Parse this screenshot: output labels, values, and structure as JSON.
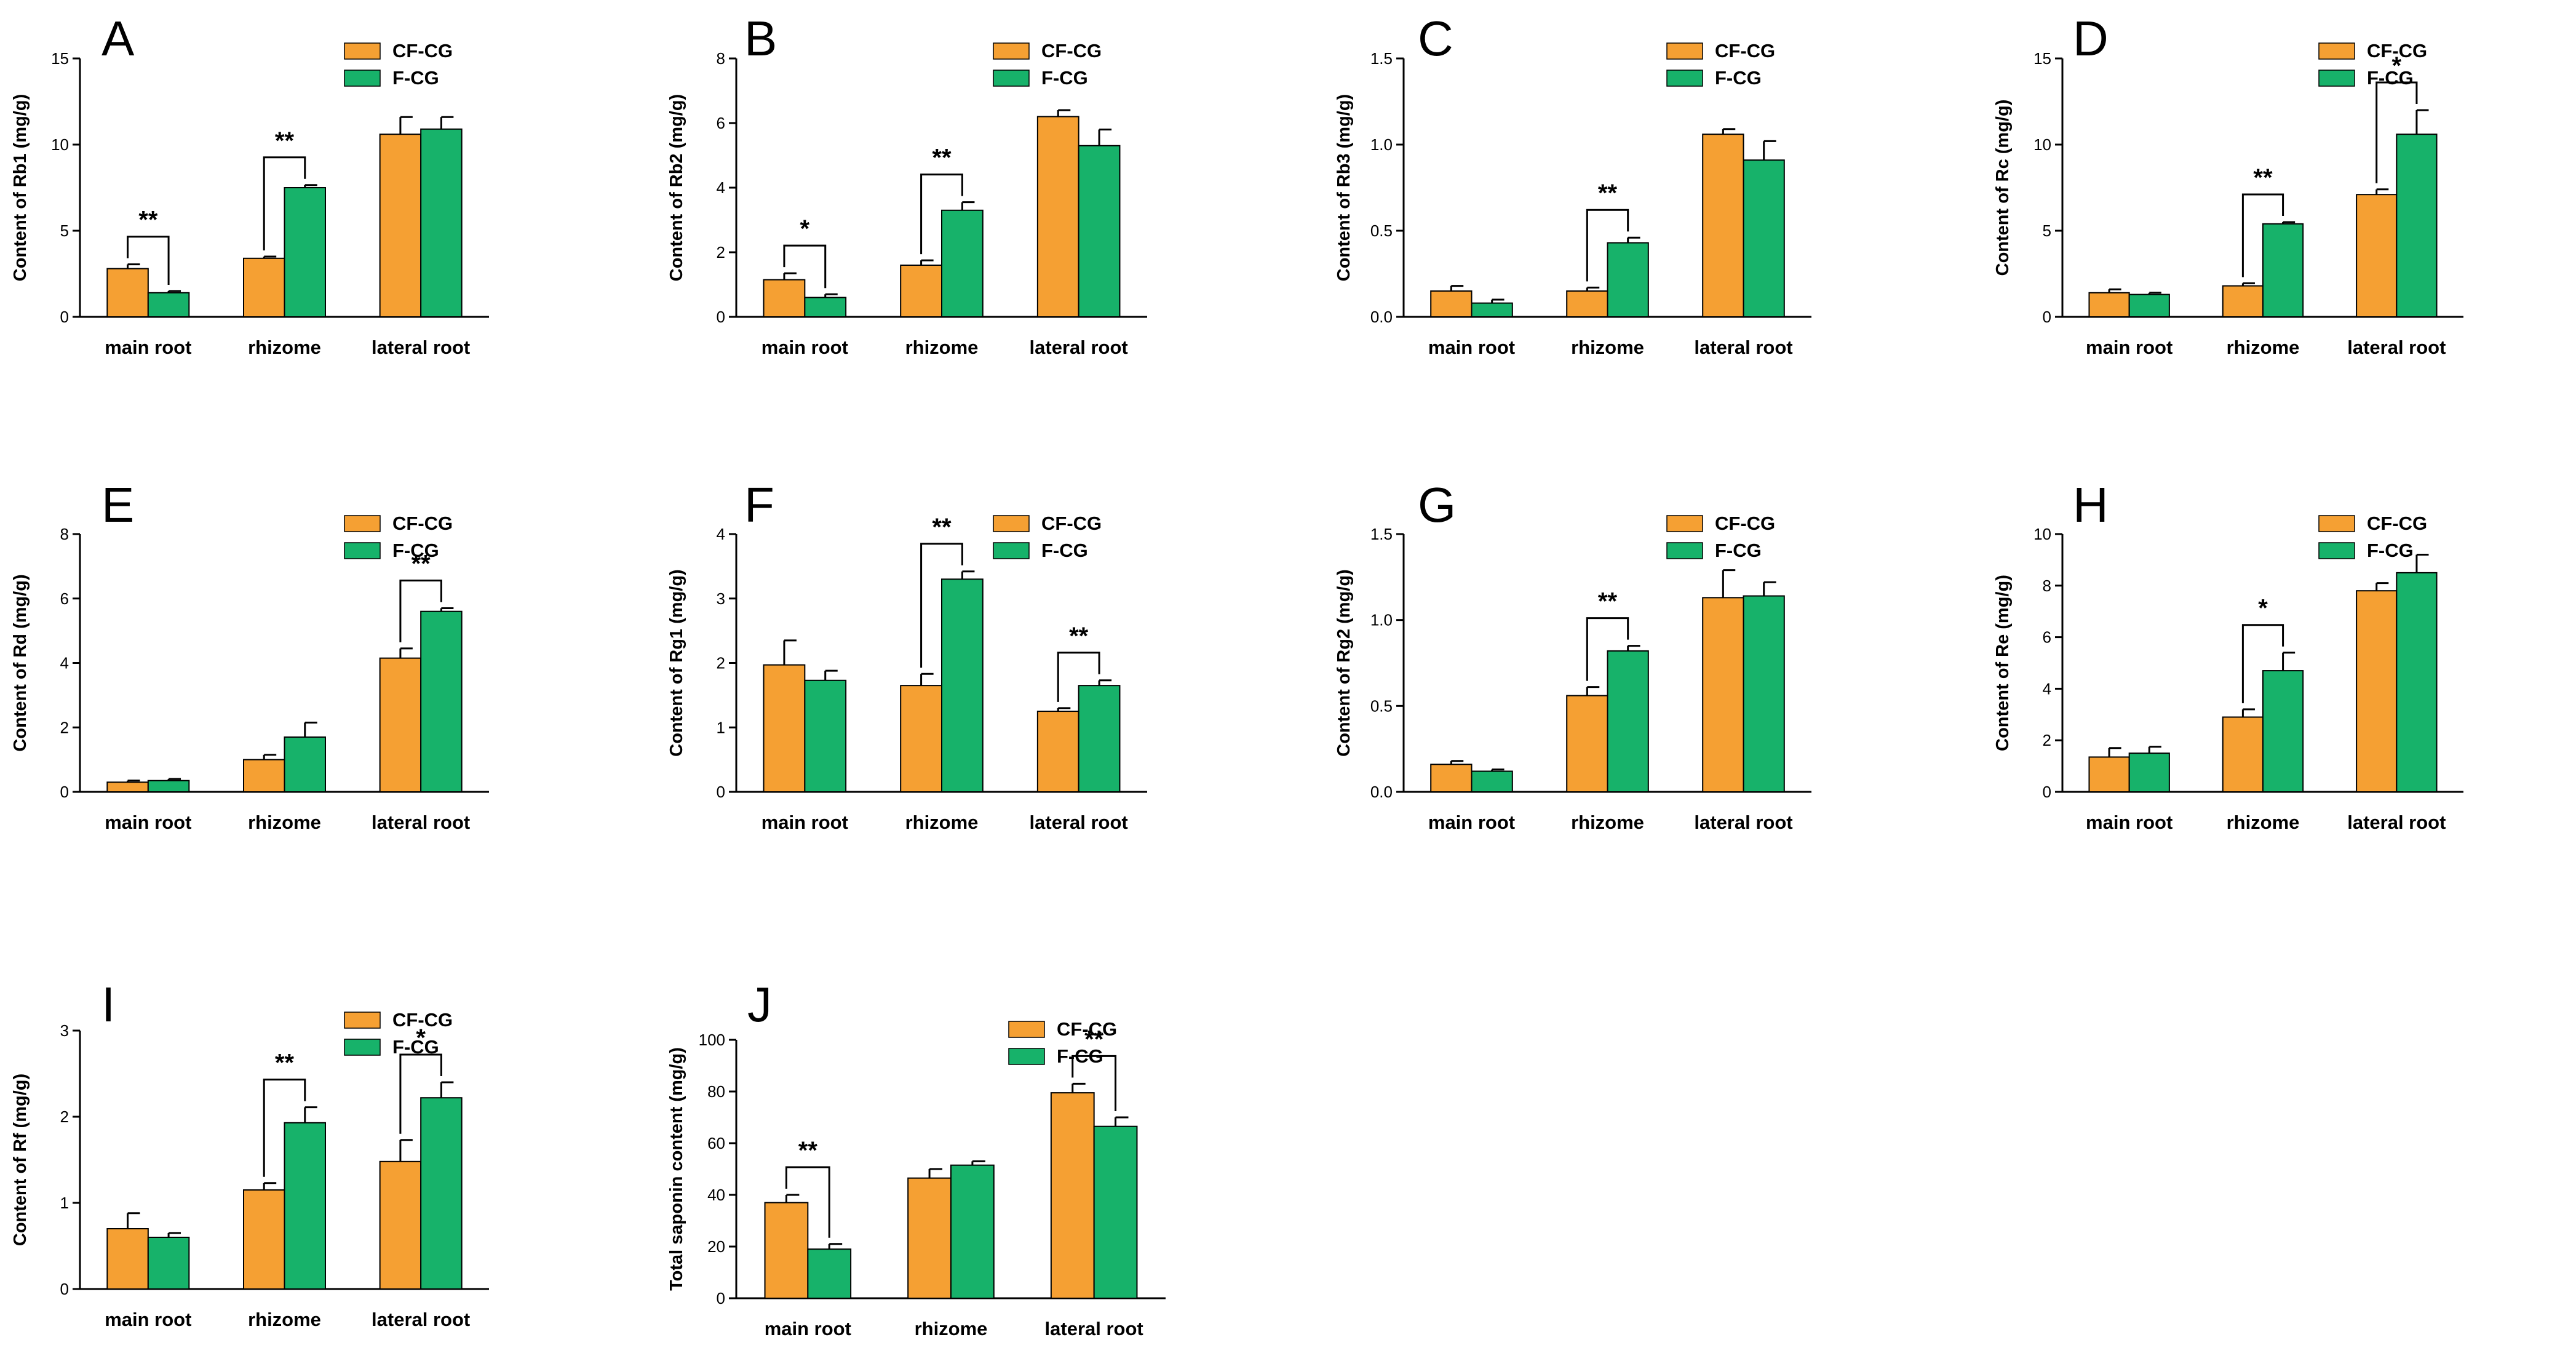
{
  "figure": {
    "colors": {
      "CF-CG": "#F5A033",
      "F-CG": "#17B26A",
      "axis": "#000000"
    }
  },
  "chart_data": [
    {
      "letter": "A",
      "type": "bar",
      "ylabel": "Content of  Rb1 (mg/g)",
      "ylim": [
        0,
        15
      ],
      "yticks": [
        0,
        5,
        10,
        15
      ],
      "categories": [
        "main root",
        "rhizome",
        "lateral root"
      ],
      "series": [
        {
          "name": "CF-CG",
          "values": [
            2.8,
            3.4,
            10.6
          ],
          "errors": [
            0.25,
            0.1,
            1.0
          ]
        },
        {
          "name": "F-CG",
          "values": [
            1.4,
            7.5,
            10.9
          ],
          "errors": [
            0.1,
            0.15,
            0.7
          ]
        }
      ],
      "significance": [
        {
          "category": 0,
          "label": "**"
        },
        {
          "category": 1,
          "label": "**"
        }
      ]
    },
    {
      "letter": "B",
      "type": "bar",
      "ylabel": "Content of Rb2 (mg/g)",
      "ylim": [
        0,
        8
      ],
      "yticks": [
        0,
        2,
        4,
        6,
        8
      ],
      "categories": [
        "main root",
        "rhizome",
        "lateral root"
      ],
      "series": [
        {
          "name": "CF-CG",
          "values": [
            1.15,
            1.6,
            6.2
          ],
          "errors": [
            0.2,
            0.15,
            0.2
          ]
        },
        {
          "name": "F-CG",
          "values": [
            0.6,
            3.3,
            5.3
          ],
          "errors": [
            0.1,
            0.25,
            0.5
          ]
        }
      ],
      "significance": [
        {
          "category": 0,
          "label": "*"
        },
        {
          "category": 1,
          "label": "**"
        }
      ]
    },
    {
      "letter": "C",
      "type": "bar",
      "ylabel": "Content of Rb3 (mg/g)",
      "ylim": [
        0,
        1.5
      ],
      "yticks": [
        0.0,
        0.5,
        1.0,
        1.5
      ],
      "categories": [
        "main root",
        "rhizome",
        "lateral root"
      ],
      "series": [
        {
          "name": "CF-CG",
          "values": [
            0.15,
            0.15,
            1.06
          ],
          "errors": [
            0.03,
            0.02,
            0.03
          ]
        },
        {
          "name": "F-CG",
          "values": [
            0.08,
            0.43,
            0.91
          ],
          "errors": [
            0.02,
            0.03,
            0.11
          ]
        }
      ],
      "significance": [
        {
          "category": 1,
          "label": "**"
        }
      ]
    },
    {
      "letter": "D",
      "type": "bar",
      "ylabel": "Content of Rc (mg/g)",
      "ylim": [
        0,
        15
      ],
      "yticks": [
        0,
        5,
        10,
        15
      ],
      "categories": [
        "main root",
        "rhizome",
        "lateral root"
      ],
      "series": [
        {
          "name": "CF-CG",
          "values": [
            1.4,
            1.8,
            7.1
          ],
          "errors": [
            0.2,
            0.15,
            0.3
          ]
        },
        {
          "name": "F-CG",
          "values": [
            1.3,
            5.4,
            10.6
          ],
          "errors": [
            0.1,
            0.1,
            1.4
          ]
        }
      ],
      "significance": [
        {
          "category": 1,
          "label": "**"
        },
        {
          "category": 2,
          "label": "*"
        }
      ]
    },
    {
      "letter": "E",
      "type": "bar",
      "ylabel": "Content of Rd (mg/g)",
      "ylim": [
        0,
        8
      ],
      "yticks": [
        0,
        2,
        4,
        6,
        8
      ],
      "categories": [
        "main root",
        "rhizome",
        "lateral root"
      ],
      "series": [
        {
          "name": "CF-CG",
          "values": [
            0.3,
            1.0,
            4.15
          ],
          "errors": [
            0.05,
            0.15,
            0.3
          ]
        },
        {
          "name": "F-CG",
          "values": [
            0.35,
            1.7,
            5.6
          ],
          "errors": [
            0.05,
            0.45,
            0.1
          ]
        }
      ],
      "significance": [
        {
          "category": 2,
          "label": "**"
        }
      ]
    },
    {
      "letter": "F",
      "type": "bar",
      "ylabel": "Content of Rg1 (mg/g)",
      "ylim": [
        0,
        4
      ],
      "yticks": [
        0,
        1,
        2,
        3,
        4
      ],
      "categories": [
        "main root",
        "rhizome",
        "lateral root"
      ],
      "series": [
        {
          "name": "CF-CG",
          "values": [
            1.97,
            1.65,
            1.25
          ],
          "errors": [
            0.38,
            0.18,
            0.05
          ]
        },
        {
          "name": "F-CG",
          "values": [
            1.73,
            3.3,
            1.65
          ],
          "errors": [
            0.15,
            0.12,
            0.08
          ]
        }
      ],
      "significance": [
        {
          "category": 1,
          "label": "**"
        },
        {
          "category": 2,
          "label": "**"
        }
      ]
    },
    {
      "letter": "G",
      "type": "bar",
      "ylabel": "Content of Rg2 (mg/g)",
      "ylim": [
        0,
        1.5
      ],
      "yticks": [
        0.0,
        0.5,
        1.0,
        1.5
      ],
      "categories": [
        "main root",
        "rhizome",
        "lateral root"
      ],
      "series": [
        {
          "name": "CF-CG",
          "values": [
            0.16,
            0.56,
            1.13
          ],
          "errors": [
            0.02,
            0.05,
            0.16
          ]
        },
        {
          "name": "F-CG",
          "values": [
            0.12,
            0.82,
            1.14
          ],
          "errors": [
            0.01,
            0.03,
            0.08
          ]
        }
      ],
      "significance": [
        {
          "category": 1,
          "label": "**"
        }
      ]
    },
    {
      "letter": "H",
      "type": "bar",
      "ylabel": "Content of Re (mg/g)",
      "ylim": [
        0,
        10
      ],
      "yticks": [
        0,
        2,
        4,
        6,
        8,
        10
      ],
      "categories": [
        "main root",
        "rhizome",
        "lateral root"
      ],
      "series": [
        {
          "name": "CF-CG",
          "values": [
            1.35,
            2.9,
            7.8
          ],
          "errors": [
            0.35,
            0.3,
            0.3
          ]
        },
        {
          "name": "F-CG",
          "values": [
            1.5,
            4.7,
            8.5
          ],
          "errors": [
            0.25,
            0.7,
            0.7
          ]
        }
      ],
      "significance": [
        {
          "category": 1,
          "label": "*"
        }
      ]
    },
    {
      "letter": "I",
      "type": "bar",
      "ylabel": "Content of Rf (mg/g)",
      "ylim": [
        0,
        3
      ],
      "yticks": [
        0,
        1,
        2,
        3
      ],
      "categories": [
        "main root",
        "rhizome",
        "lateral root"
      ],
      "series": [
        {
          "name": "CF-CG",
          "values": [
            0.7,
            1.15,
            1.48
          ],
          "errors": [
            0.18,
            0.08,
            0.25
          ]
        },
        {
          "name": "F-CG",
          "values": [
            0.6,
            1.93,
            2.22
          ],
          "errors": [
            0.05,
            0.18,
            0.18
          ]
        }
      ],
      "significance": [
        {
          "category": 1,
          "label": "**"
        },
        {
          "category": 2,
          "label": "*"
        }
      ]
    },
    {
      "letter": "J",
      "type": "bar",
      "ylabel": "Total saponin content (mg/g)",
      "ylim": [
        0,
        100
      ],
      "yticks": [
        0,
        20,
        40,
        60,
        80,
        100
      ],
      "categories": [
        "main root",
        "rhizome",
        "lateral root"
      ],
      "series": [
        {
          "name": "CF-CG",
          "values": [
            37,
            46.5,
            79.5
          ],
          "errors": [
            3,
            3.5,
            3.5
          ]
        },
        {
          "name": "F-CG",
          "values": [
            19,
            51.5,
            66.5
          ],
          "errors": [
            2,
            1.5,
            3.5
          ]
        }
      ],
      "significance": [
        {
          "category": 0,
          "label": "**"
        },
        {
          "category": 2,
          "label": "**"
        }
      ]
    }
  ]
}
